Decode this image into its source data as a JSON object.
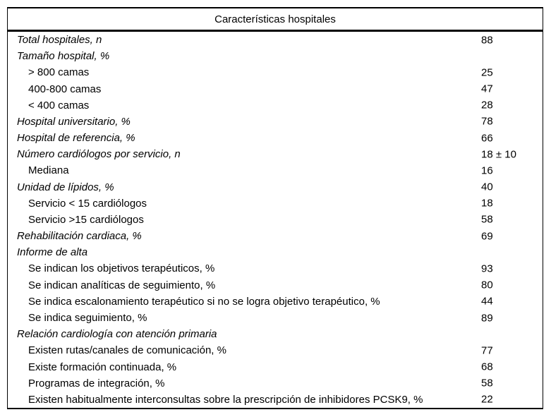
{
  "table": {
    "title": "Características hospitales",
    "colors": {
      "text": "#000000",
      "border": "#000000",
      "background": "#ffffff"
    },
    "rows": [
      {
        "label": "Total hospitales, n",
        "value": "88",
        "italic": true,
        "indent": false
      },
      {
        "label": "Tamaño hospital, %",
        "value": "",
        "italic": true,
        "indent": false
      },
      {
        "label": "> 800 camas",
        "value": "25",
        "italic": false,
        "indent": true
      },
      {
        "label": "400-800 camas",
        "value": "47",
        "italic": false,
        "indent": true
      },
      {
        "label": "< 400 camas",
        "value": "28",
        "italic": false,
        "indent": true
      },
      {
        "label": "Hospital universitario, %",
        "value": "78",
        "italic": true,
        "indent": false
      },
      {
        "label": "Hospital de referencia, %",
        "value": "66",
        "italic": true,
        "indent": false
      },
      {
        "label": "Número cardiólogos por servicio, n",
        "value": "18 ± 10",
        "italic": true,
        "indent": false
      },
      {
        "label": "Mediana",
        "value": "16",
        "italic": false,
        "indent": true
      },
      {
        "label": "Unidad de lípidos, %",
        "value": "40",
        "italic": true,
        "indent": false
      },
      {
        "label": "Servicio < 15 cardiólogos",
        "value": "18",
        "italic": false,
        "indent": true
      },
      {
        "label": "Servicio >15 cardiólogos",
        "value": "58",
        "italic": false,
        "indent": true
      },
      {
        "label": "Rehabilitación cardiaca, %",
        "value": "69",
        "italic": true,
        "indent": false
      },
      {
        "label": "Informe de alta",
        "value": "",
        "italic": true,
        "indent": false
      },
      {
        "label": "Se indican los objetivos terapéuticos, %",
        "value": "93",
        "italic": false,
        "indent": true
      },
      {
        "label": "Se indican analíticas de seguimiento, %",
        "value": "80",
        "italic": false,
        "indent": true
      },
      {
        "label": "Se indica escalonamiento terapéutico si no se logra objetivo terapéutico, %",
        "value": "44",
        "italic": false,
        "indent": true
      },
      {
        "label": "Se indica seguimiento, %",
        "value": "89",
        "italic": false,
        "indent": true
      },
      {
        "label": "Relación cardiología con atención primaria",
        "value": "",
        "italic": true,
        "indent": false
      },
      {
        "label": "Existen rutas/canales de comunicación, %",
        "value": "77",
        "italic": false,
        "indent": true
      },
      {
        "label": "Existe formación continuada, %",
        "value": "68",
        "italic": false,
        "indent": true
      },
      {
        "label": "Programas de integración, %",
        "value": "58",
        "italic": false,
        "indent": true
      },
      {
        "label": "Existen habitualmente interconsultas sobre la prescripción de inhibidores PCSK9, %",
        "value": "22",
        "italic": false,
        "indent": true
      }
    ]
  }
}
